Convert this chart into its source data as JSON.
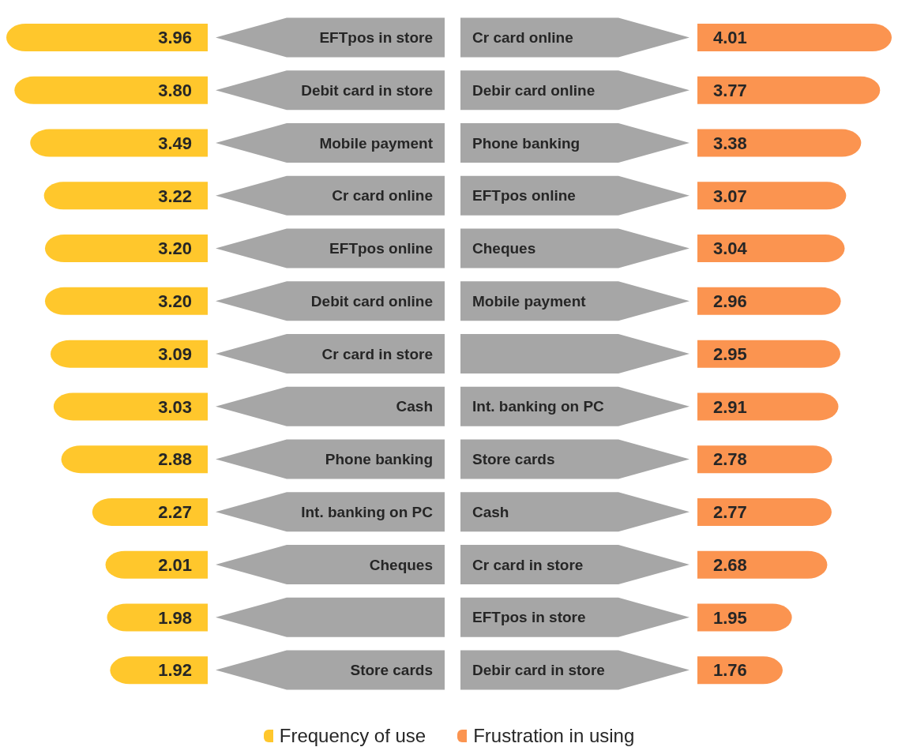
{
  "chart_data": [
    {
      "type": "bar",
      "orientation": "horizontal",
      "legend": "bottom",
      "categories": [
        "EFTpos in store",
        "Debit card in store",
        "Mobile payment",
        "Cr card online",
        "EFTpos online",
        "Debit card online",
        "Cr card in store",
        "Cash",
        "Phone banking",
        "Int. banking on PC",
        "Cheques",
        null,
        "Store cards"
      ],
      "series": [
        {
          "name": "Frequency of use",
          "color": "#ffc72c",
          "values": [
            3.96,
            3.8,
            3.49,
            3.22,
            3.2,
            3.2,
            3.09,
            3.03,
            2.88,
            2.27,
            2.01,
            1.98,
            1.92
          ],
          "value_labels": [
            "3.96",
            "3.80",
            "3.49",
            "3.22",
            "3.20",
            "3.20",
            "3.09",
            "3.03",
            "2.88",
            "2.27",
            "2.01",
            "1.98",
            "1.92"
          ]
        }
      ]
    },
    {
      "type": "bar",
      "orientation": "horizontal",
      "legend": "bottom",
      "categories": [
        "Cr card online",
        "Debir card online",
        "Phone banking",
        "EFTpos online",
        "Cheques",
        "Mobile payment",
        null,
        "Int. banking on PC",
        "Store cards",
        "Cash",
        "Cr card in store",
        "EFTpos in store",
        "Debir card in store"
      ],
      "series": [
        {
          "name": "Frustration in using",
          "color": "#fb9450",
          "values": [
            4.01,
            3.77,
            3.38,
            3.07,
            3.04,
            2.96,
            2.95,
            2.91,
            2.78,
            2.77,
            2.68,
            1.95,
            1.76
          ],
          "value_labels": [
            "4.01",
            "3.77",
            "3.38",
            "3.07",
            "3.04",
            "2.96",
            "2.95",
            "2.91",
            "2.78",
            "2.77",
            "2.68",
            "1.95",
            "1.76"
          ]
        }
      ]
    }
  ]
}
